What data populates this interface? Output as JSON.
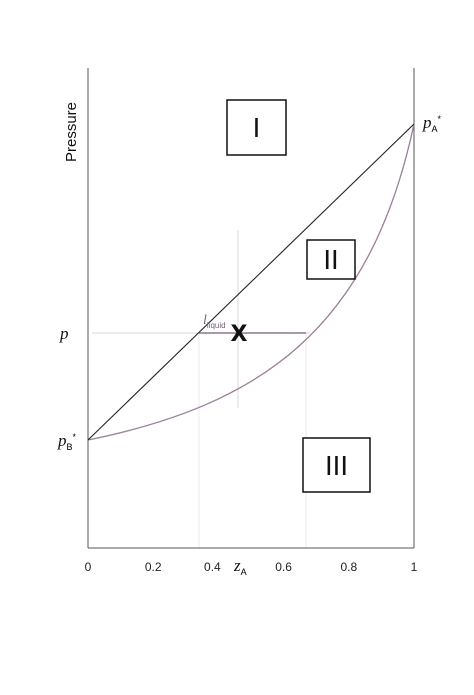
{
  "axis": {
    "ylabel": "Pressure",
    "xlabel_main": "z",
    "xlabel_sub": "A",
    "ticks": [
      {
        "value": 0,
        "label": "0"
      },
      {
        "value": 0.2,
        "label": "0.2"
      },
      {
        "value": 0.4,
        "label": "0.4"
      },
      {
        "value": 0.6,
        "label": "0.6"
      },
      {
        "value": 0.8,
        "label": "0.8"
      },
      {
        "value": 1,
        "label": "1"
      }
    ]
  },
  "pressure_labels": {
    "pA_main": "p",
    "pA_sub": "A",
    "pA_star": "*",
    "pB_main": "p",
    "pB_sub": "B",
    "pB_star": "*",
    "p": "p"
  },
  "regions": [
    "I",
    "II",
    "III"
  ],
  "tie_line": {
    "label_main": "l",
    "label_sub": "liquid",
    "marker": "X"
  }
}
